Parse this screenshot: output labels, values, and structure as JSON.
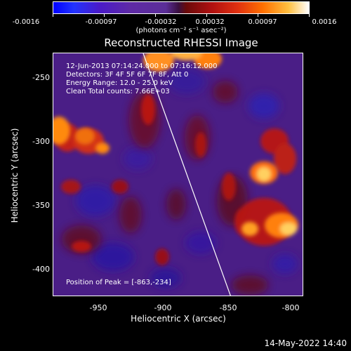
{
  "colorbar": {
    "ticks": [
      "-0.0016",
      "-0.00097",
      "-0.00032",
      "0.00032",
      "0.00097",
      "0.0016"
    ],
    "units": "(photons cm⁻² s⁻¹ asec⁻²)"
  },
  "title": "Reconstructed RHESSI Image",
  "info_lines": [
    "12-Jun-2013 07:14:24.000 to 07:16:12.000",
    "Detectors: 3F 4F 5F 6F 7F 8F, Att 0",
    "Energy Range: 12.0 - 25.0 keV",
    "Clean    Total counts: 7.66E+03"
  ],
  "peak_label": "Position of Peak = [-863,-234]",
  "axes": {
    "x_label": "Heliocentric X (arcsec)",
    "y_label": "Heliocentric Y (arcsec)",
    "x_ticks": [
      "-950",
      "-900",
      "-850",
      "-800"
    ],
    "y_ticks": [
      "-250",
      "-300",
      "-350",
      "-400"
    ]
  },
  "footer_date": "14-May-2022 14:40",
  "colors": {
    "background": "#000000",
    "foreground": "#ffffff",
    "image_base": "#4a1e86"
  }
}
